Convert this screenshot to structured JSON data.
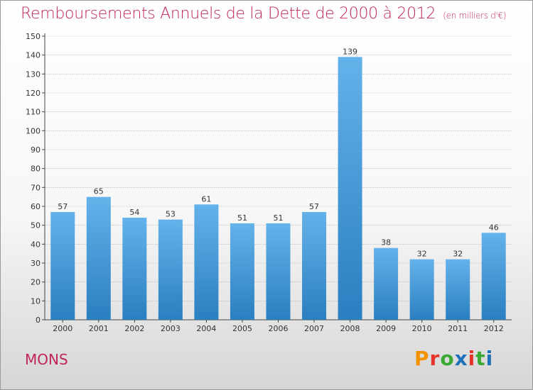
{
  "header": {
    "title": "Remboursements Annuels de la Dette de 2000 à 2012",
    "unit_note": "(en milliers d'€)"
  },
  "footer": {
    "city": "MONS",
    "brand": "Proxiti",
    "brand_colors": [
      "#f39200",
      "#e6332a",
      "#3aaa35",
      "#1d71b8",
      "#e6332a",
      "#3aaa35",
      "#1d71b8"
    ]
  },
  "colors": {
    "bar_top": "#64b2ea",
    "bar_bottom": "#2a7fc0",
    "title": "#c0245a",
    "grid": "#a9a9a9"
  },
  "chart_data": {
    "type": "bar",
    "title": "Remboursements Annuels de la Dette de 2000 à 2012",
    "subtitle": "(en milliers d'€)",
    "categories": [
      "2000",
      "2001",
      "2002",
      "2003",
      "2004",
      "2005",
      "2006",
      "2007",
      "2008",
      "2009",
      "2010",
      "2011",
      "2012"
    ],
    "values": [
      57,
      65,
      54,
      53,
      61,
      51,
      51,
      57,
      139,
      38,
      32,
      32,
      46
    ],
    "ylim": [
      0,
      150
    ],
    "yticks": [
      0,
      10,
      20,
      30,
      40,
      50,
      60,
      70,
      80,
      90,
      100,
      110,
      120,
      130,
      140,
      150
    ],
    "grid": true,
    "data_labels": true
  }
}
